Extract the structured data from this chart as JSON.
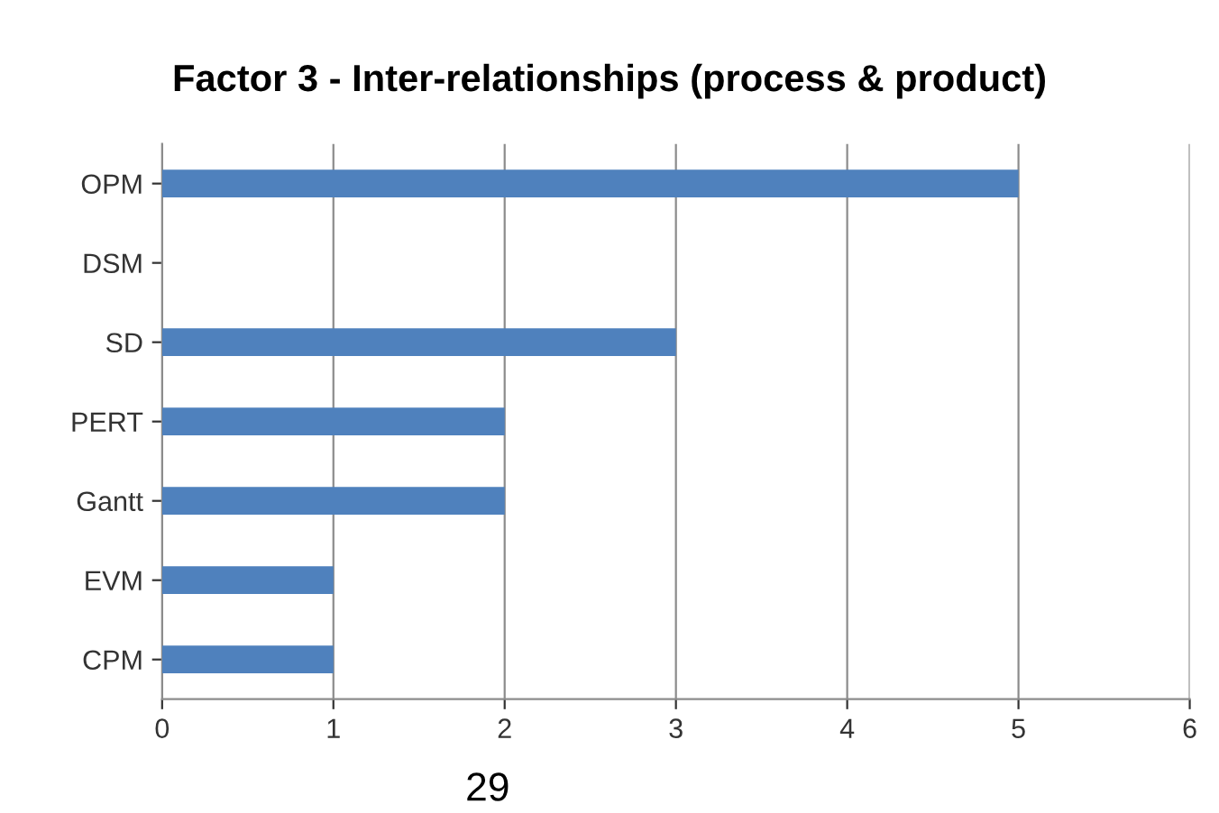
{
  "chart_data": {
    "type": "bar",
    "orientation": "horizontal",
    "title": "Factor 3 - Inter-relationships (process & product)",
    "categories": [
      "OPM",
      "DSM",
      "SD",
      "PERT",
      "Gantt",
      "EVM",
      "CPM"
    ],
    "values": [
      5,
      0,
      3,
      2,
      2,
      1,
      1
    ],
    "color": "#4f81bd",
    "xlim": [
      0,
      6
    ],
    "xticks": [
      0,
      1,
      2,
      3,
      4,
      5,
      6
    ],
    "grid": "x",
    "annotations": [
      "29"
    ]
  }
}
